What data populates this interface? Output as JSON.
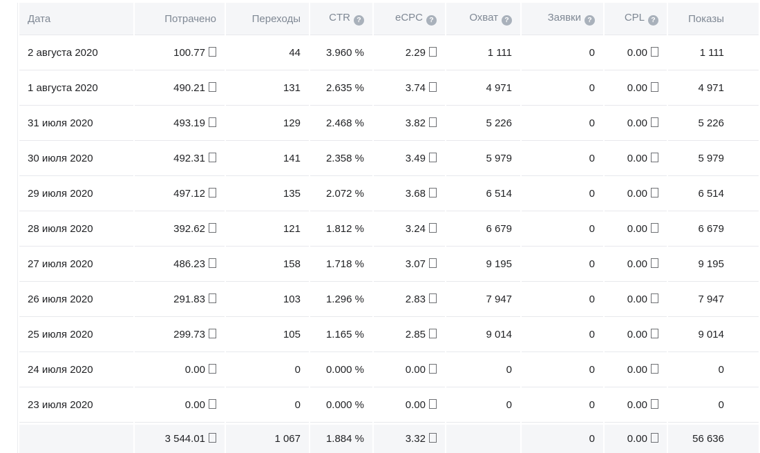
{
  "icons": {
    "help_glyph": "?",
    "missing_currency_glyph": "empty-box (unrendered ruble sign)"
  },
  "colors": {
    "header_footer_bg": "#f5f6f8",
    "header_text": "#7f8894",
    "body_text": "#1f2023",
    "separator": "#e7e8ec",
    "help_icon_bg": "#a9b1bb"
  },
  "table": {
    "columns": [
      {
        "key": "date",
        "label": "Дата",
        "has_help": false,
        "currency": false
      },
      {
        "key": "spent",
        "label": "Потрачено",
        "has_help": false,
        "currency": true
      },
      {
        "key": "clicks",
        "label": "Переходы",
        "has_help": false,
        "currency": false
      },
      {
        "key": "ctr",
        "label": "CTR",
        "has_help": true,
        "currency": false
      },
      {
        "key": "ecpc",
        "label": "eCPC",
        "has_help": true,
        "currency": true
      },
      {
        "key": "reach",
        "label": "Охват",
        "has_help": true,
        "currency": false
      },
      {
        "key": "leads",
        "label": "Заявки",
        "has_help": true,
        "currency": false
      },
      {
        "key": "cpl",
        "label": "CPL",
        "has_help": true,
        "currency": true
      },
      {
        "key": "impressions",
        "label": "Показы",
        "has_help": false,
        "currency": false
      }
    ],
    "rows": [
      [
        "2 августа 2020",
        "100.77",
        "44",
        "3.960 %",
        "2.29",
        "1 111",
        "0",
        "0.00",
        "1 111"
      ],
      [
        "1 августа 2020",
        "490.21",
        "131",
        "2.635 %",
        "3.74",
        "4 971",
        "0",
        "0.00",
        "4 971"
      ],
      [
        "31 июля 2020",
        "493.19",
        "129",
        "2.468 %",
        "3.82",
        "5 226",
        "0",
        "0.00",
        "5 226"
      ],
      [
        "30 июля 2020",
        "492.31",
        "141",
        "2.358 %",
        "3.49",
        "5 979",
        "0",
        "0.00",
        "5 979"
      ],
      [
        "29 июля 2020",
        "497.12",
        "135",
        "2.072 %",
        "3.68",
        "6 514",
        "0",
        "0.00",
        "6 514"
      ],
      [
        "28 июля 2020",
        "392.62",
        "121",
        "1.812 %",
        "3.24",
        "6 679",
        "0",
        "0.00",
        "6 679"
      ],
      [
        "27 июля 2020",
        "486.23",
        "158",
        "1.718 %",
        "3.07",
        "9 195",
        "0",
        "0.00",
        "9 195"
      ],
      [
        "26 июля 2020",
        "291.83",
        "103",
        "1.296 %",
        "2.83",
        "7 947",
        "0",
        "0.00",
        "7 947"
      ],
      [
        "25 июля 2020",
        "299.73",
        "105",
        "1.165 %",
        "2.85",
        "9 014",
        "0",
        "0.00",
        "9 014"
      ],
      [
        "24 июля 2020",
        "0.00",
        "0",
        "0.000 %",
        "0.00",
        "0",
        "0",
        "0.00",
        "0"
      ],
      [
        "23 июля 2020",
        "0.00",
        "0",
        "0.000 %",
        "0.00",
        "0",
        "0",
        "0.00",
        "0"
      ]
    ],
    "totals": [
      "",
      "3 544.01",
      "1 067",
      "1.884 %",
      "3.32",
      "",
      "0",
      "0.00",
      "56 636"
    ]
  }
}
